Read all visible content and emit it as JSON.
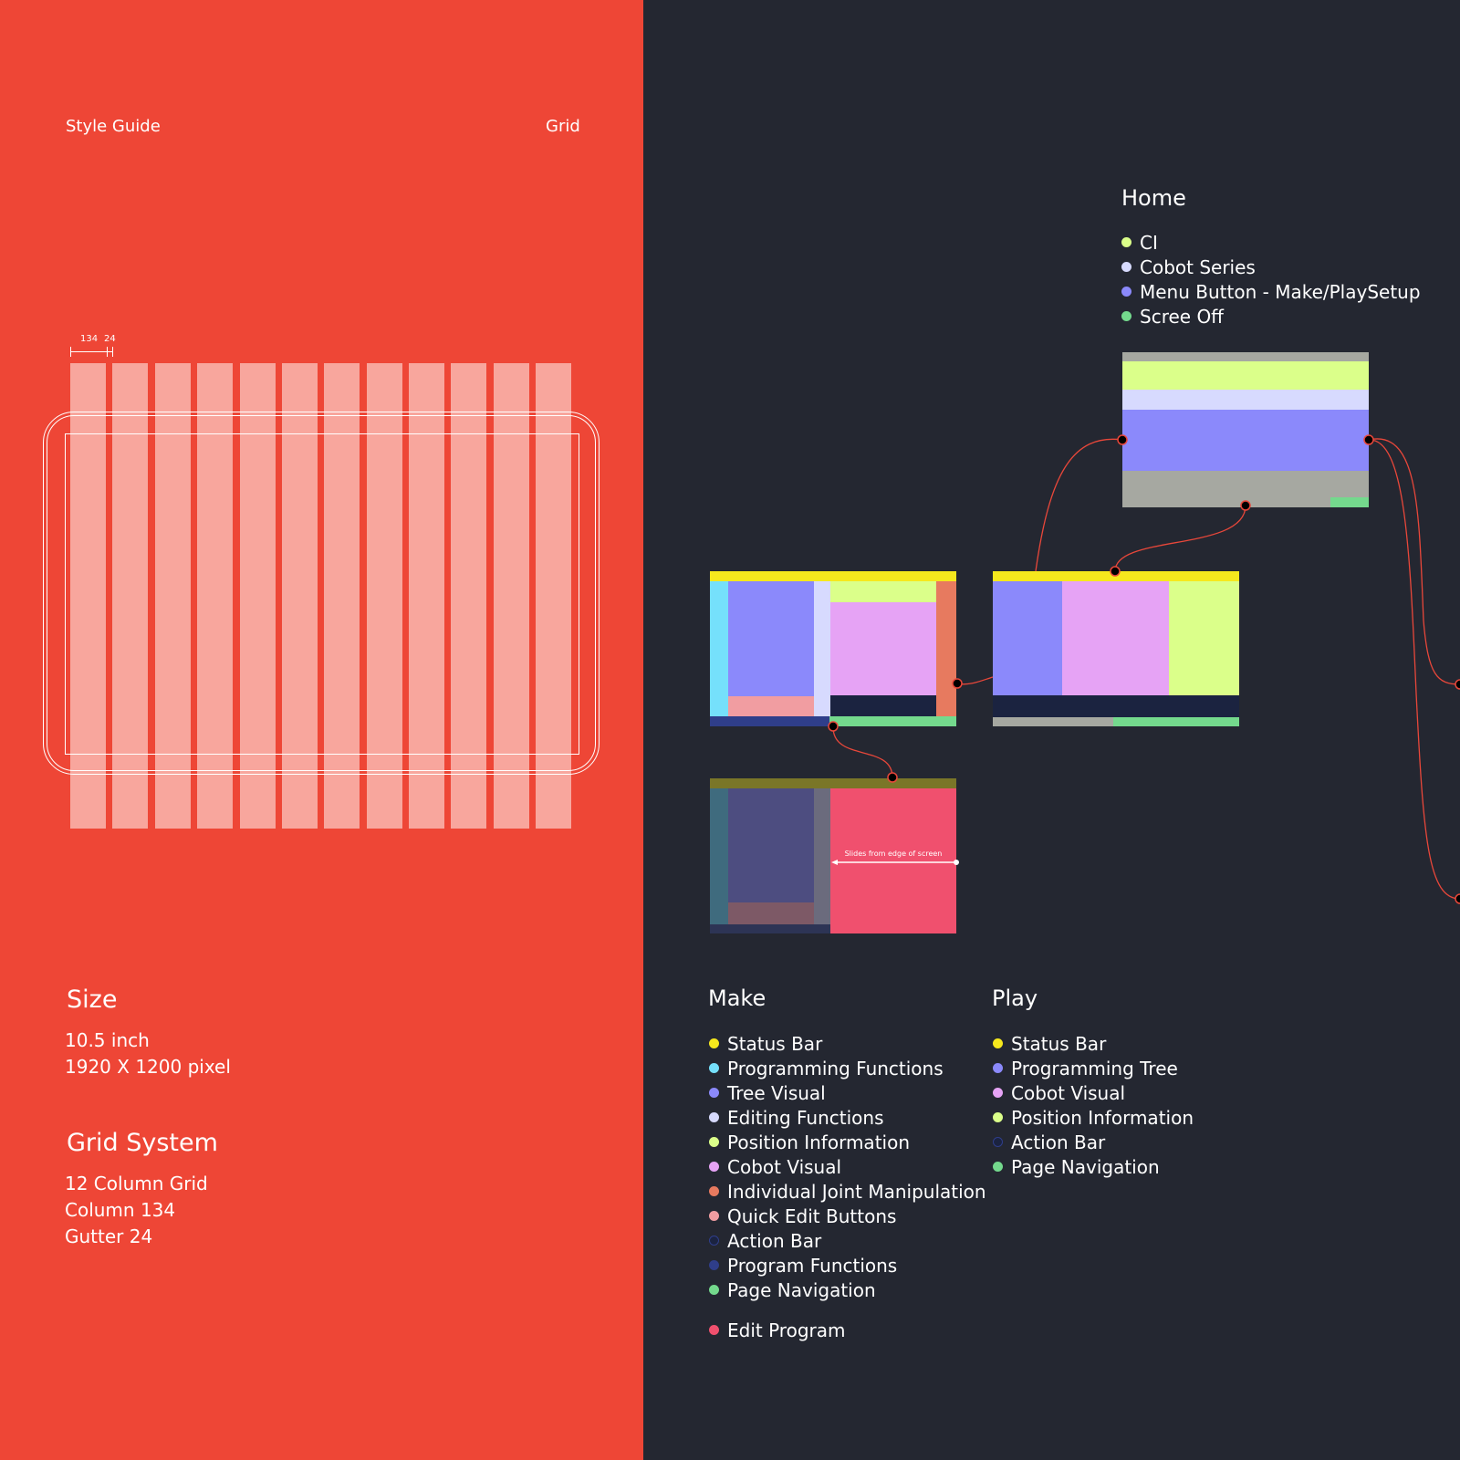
{
  "header": {
    "left": "Style Guide",
    "right": "Grid"
  },
  "grid_dims": {
    "column": "134",
    "gutter": "24"
  },
  "size": {
    "title": "Size",
    "lines": [
      "10.5 inch",
      "1920 X 1200 pixel"
    ]
  },
  "grid_system": {
    "title": "Grid System",
    "lines": [
      "12 Column Grid",
      "Column 134",
      "Gutter 24"
    ]
  },
  "home": {
    "title": "Home",
    "items": [
      {
        "label": "CI",
        "color": "#dbff8a"
      },
      {
        "label": "Cobot Series",
        "color": "#d7dafe"
      },
      {
        "label": "Menu Button - Make/PlaySetup",
        "color": "#8b89fb"
      },
      {
        "label": "Scree Off",
        "color": "#74d98d"
      }
    ]
  },
  "make": {
    "title": "Make",
    "items": [
      {
        "label": "Status Bar",
        "color": "#f6e81d"
      },
      {
        "label": "Programming Functions",
        "color": "#75e0fb"
      },
      {
        "label": "Tree Visual",
        "color": "#8b89fb"
      },
      {
        "label": "Editing Functions",
        "color": "#d7dafe"
      },
      {
        "label": "Position Information",
        "color": "#dbff8a"
      },
      {
        "label": "Cobot Visual",
        "color": "#e6a3f5"
      },
      {
        "label": "Individual Joint Manipulation",
        "color": "#e77a5f"
      },
      {
        "label": "Quick Edit Buttons",
        "color": "#f19da1"
      },
      {
        "label": "Action Bar",
        "color": "#1b2340"
      },
      {
        "label": "Program Functions",
        "color": "#2f3e8a"
      },
      {
        "label": "Page Navigation",
        "color": "#74d98d"
      }
    ],
    "extra": {
      "label": "Edit Program",
      "color": "#f0506e"
    }
  },
  "play": {
    "title": "Play",
    "items": [
      {
        "label": "Status Bar",
        "color": "#f6e81d"
      },
      {
        "label": "Programming Tree",
        "color": "#8b89fb"
      },
      {
        "label": "Cobot Visual",
        "color": "#e6a3f5"
      },
      {
        "label": "Position Information",
        "color": "#dbff8a"
      },
      {
        "label": "Action Bar",
        "color": "#1b2340"
      },
      {
        "label": "Page Navigation",
        "color": "#74d98d"
      }
    ]
  },
  "annotation": "Slides from edge of screen"
}
